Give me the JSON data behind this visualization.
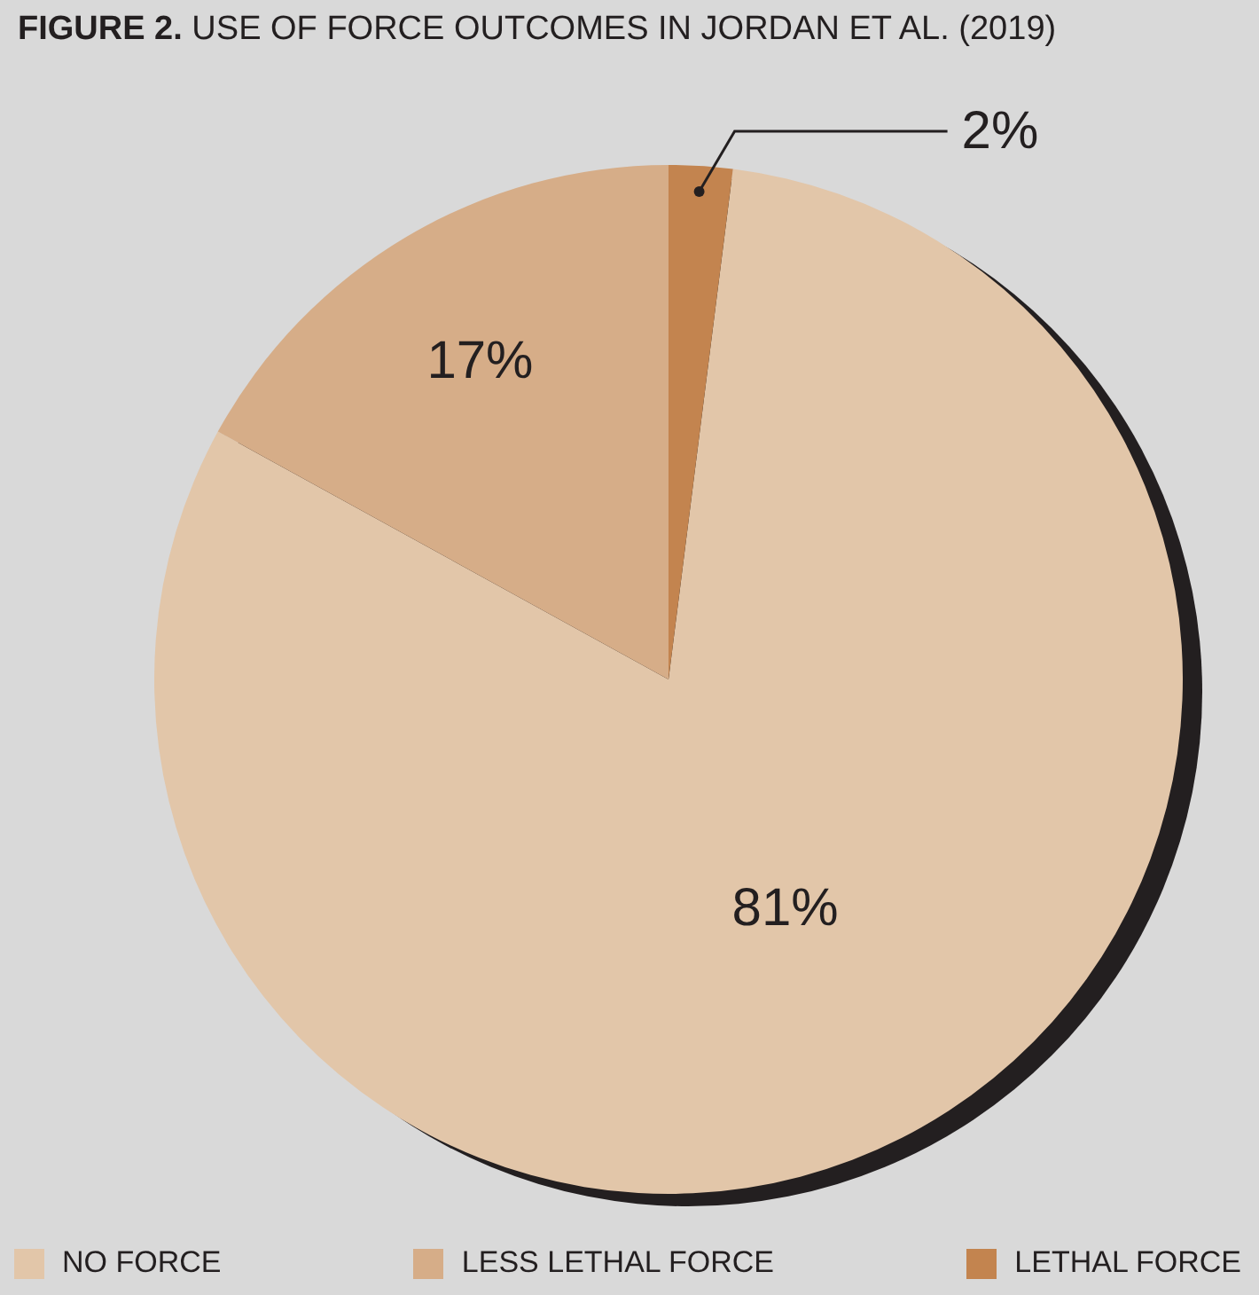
{
  "chart_data": {
    "type": "pie",
    "title": "FIGURE 2. USE OF FORCE OUTCOMES IN JORDAN ET AL. (2019)",
    "categories": [
      "NO FORCE",
      "LESS LETHAL FORCE",
      "LETHAL FORCE"
    ],
    "values": [
      81,
      17,
      2
    ],
    "colors": [
      "#e2c6a9",
      "#d6ad88",
      "#c3844f"
    ],
    "value_labels": [
      "81%",
      "17%",
      "2%"
    ],
    "legend": "bottom"
  }
}
